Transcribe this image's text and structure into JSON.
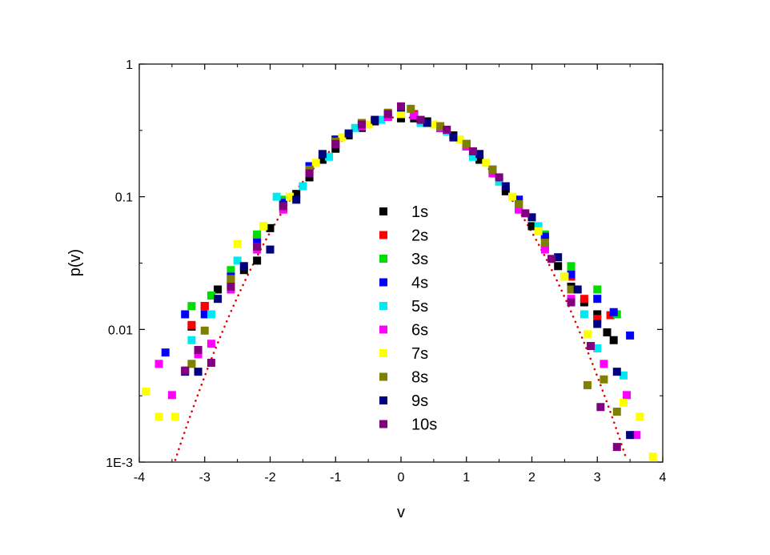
{
  "chart_data": {
    "type": "scatter",
    "xlabel": "v",
    "ylabel": "p(v)",
    "xlim": [
      -4,
      4
    ],
    "ylim": [
      0.001,
      1
    ],
    "yscale": "log",
    "x_ticks": [
      -4,
      -3,
      -2,
      -1,
      0,
      1,
      2,
      3,
      4
    ],
    "x_tick_labels": [
      "-4",
      "-3",
      "-2",
      "-1",
      "0",
      "1",
      "2",
      "3",
      "4"
    ],
    "y_ticks": [
      0.001,
      0.01,
      0.1,
      1
    ],
    "y_tick_labels": [
      "1E-3",
      "0.01",
      "0.1",
      "1"
    ],
    "grid": false,
    "legend_position": "center",
    "fit_curve": {
      "type": "gaussian",
      "style": "dotted",
      "color": "#e00000",
      "mean": 0,
      "std": 1,
      "x_range": [
        -3.45,
        3.45
      ]
    },
    "series": [
      {
        "name": "1s",
        "color": "#000000",
        "points": [
          [
            -3.2,
            0.0105
          ],
          [
            -3.0,
            0.015
          ],
          [
            -2.8,
            0.02
          ],
          [
            -2.6,
            0.024
          ],
          [
            -2.4,
            0.028
          ],
          [
            -2.2,
            0.033
          ],
          [
            -2.0,
            0.058
          ],
          [
            -1.8,
            0.082
          ],
          [
            -1.6,
            0.105
          ],
          [
            -1.4,
            0.14
          ],
          [
            -1.2,
            0.19
          ],
          [
            -1.0,
            0.23
          ],
          [
            -0.8,
            0.29
          ],
          [
            -0.6,
            0.33
          ],
          [
            -0.4,
            0.37
          ],
          [
            -0.2,
            0.4
          ],
          [
            0.0,
            0.39
          ],
          [
            0.2,
            0.39
          ],
          [
            0.4,
            0.37
          ],
          [
            0.6,
            0.33
          ],
          [
            0.8,
            0.29
          ],
          [
            1.0,
            0.24
          ],
          [
            1.2,
            0.19
          ],
          [
            1.4,
            0.15
          ],
          [
            1.6,
            0.11
          ],
          [
            1.8,
            0.082
          ],
          [
            2.0,
            0.06
          ],
          [
            2.2,
            0.042
          ],
          [
            2.4,
            0.03
          ],
          [
            2.6,
            0.021
          ],
          [
            2.8,
            0.016
          ],
          [
            3.0,
            0.013
          ],
          [
            3.15,
            0.0095
          ],
          [
            3.25,
            0.0083
          ]
        ]
      },
      {
        "name": "2s",
        "color": "#ff0000",
        "points": [
          [
            -3.2,
            0.0108
          ],
          [
            -3.0,
            0.015
          ],
          [
            -2.6,
            0.022
          ],
          [
            -2.2,
            0.05
          ],
          [
            -1.8,
            0.09
          ],
          [
            -1.4,
            0.16
          ],
          [
            -1.0,
            0.26
          ],
          [
            -0.6,
            0.34
          ],
          [
            -0.2,
            0.4
          ],
          [
            0.2,
            0.42
          ],
          [
            0.6,
            0.34
          ],
          [
            1.0,
            0.25
          ],
          [
            1.4,
            0.16
          ],
          [
            1.8,
            0.095
          ],
          [
            2.2,
            0.05
          ],
          [
            2.6,
            0.025
          ],
          [
            2.8,
            0.017
          ],
          [
            3.0,
            0.012
          ],
          [
            3.2,
            0.0128
          ]
        ]
      },
      {
        "name": "3s",
        "color": "#00dd00",
        "points": [
          [
            -3.2,
            0.015
          ],
          [
            -2.9,
            0.018
          ],
          [
            -2.6,
            0.028
          ],
          [
            -2.2,
            0.052
          ],
          [
            -1.8,
            0.095
          ],
          [
            -1.4,
            0.16
          ],
          [
            -1.0,
            0.27
          ],
          [
            -0.6,
            0.35
          ],
          [
            -0.2,
            0.42
          ],
          [
            0.2,
            0.41
          ],
          [
            0.6,
            0.33
          ],
          [
            1.0,
            0.25
          ],
          [
            1.4,
            0.16
          ],
          [
            1.8,
            0.09
          ],
          [
            2.2,
            0.052
          ],
          [
            2.6,
            0.03
          ],
          [
            3.0,
            0.02
          ],
          [
            3.3,
            0.013
          ]
        ]
      },
      {
        "name": "4s",
        "color": "#0000ff",
        "points": [
          [
            -3.6,
            0.0067
          ],
          [
            -3.3,
            0.013
          ],
          [
            -3.0,
            0.013
          ],
          [
            -2.6,
            0.025
          ],
          [
            -2.2,
            0.045
          ],
          [
            -1.8,
            0.09
          ],
          [
            -1.4,
            0.17
          ],
          [
            -1.0,
            0.27
          ],
          [
            -0.6,
            0.36
          ],
          [
            -0.2,
            0.42
          ],
          [
            0.2,
            0.41
          ],
          [
            0.6,
            0.33
          ],
          [
            1.0,
            0.24
          ],
          [
            1.4,
            0.16
          ],
          [
            1.8,
            0.095
          ],
          [
            2.2,
            0.05
          ],
          [
            2.6,
            0.026
          ],
          [
            3.0,
            0.017
          ],
          [
            3.25,
            0.0135
          ],
          [
            3.5,
            0.009
          ]
        ]
      },
      {
        "name": "5s",
        "color": "#00e8f0",
        "points": [
          [
            -3.2,
            0.0083
          ],
          [
            -2.9,
            0.013
          ],
          [
            -2.5,
            0.033
          ],
          [
            -2.1,
            0.06
          ],
          [
            -1.9,
            0.1
          ],
          [
            -1.5,
            0.12
          ],
          [
            -1.1,
            0.2
          ],
          [
            -0.7,
            0.33
          ],
          [
            -0.3,
            0.38
          ],
          [
            0.3,
            0.36
          ],
          [
            0.7,
            0.31
          ],
          [
            1.1,
            0.2
          ],
          [
            1.5,
            0.13
          ],
          [
            1.8,
            0.085
          ],
          [
            2.1,
            0.06
          ],
          [
            2.5,
            0.025
          ],
          [
            2.8,
            0.013
          ],
          [
            3.0,
            0.0072
          ],
          [
            3.4,
            0.0045
          ]
        ]
      },
      {
        "name": "6s",
        "color": "#ff00ff",
        "points": [
          [
            -3.7,
            0.0055
          ],
          [
            -3.5,
            0.0032
          ],
          [
            -3.1,
            0.0065
          ],
          [
            -2.9,
            0.0078
          ],
          [
            -2.6,
            0.02
          ],
          [
            -2.2,
            0.04
          ],
          [
            -1.8,
            0.08
          ],
          [
            -1.4,
            0.15
          ],
          [
            -1.0,
            0.25
          ],
          [
            -0.6,
            0.34
          ],
          [
            -0.2,
            0.4
          ],
          [
            0.2,
            0.41
          ],
          [
            0.6,
            0.33
          ],
          [
            1.0,
            0.24
          ],
          [
            1.4,
            0.15
          ],
          [
            1.8,
            0.08
          ],
          [
            2.2,
            0.04
          ],
          [
            2.6,
            0.017
          ],
          [
            3.1,
            0.0055
          ],
          [
            3.45,
            0.0032
          ],
          [
            3.6,
            0.0016
          ]
        ]
      },
      {
        "name": "7s",
        "color": "#ffff00",
        "points": [
          [
            -3.9,
            0.0034
          ],
          [
            -3.7,
            0.0022
          ],
          [
            -3.45,
            0.0022
          ],
          [
            -3.2,
            0.0055
          ],
          [
            -2.5,
            0.044
          ],
          [
            -2.1,
            0.06
          ],
          [
            -1.7,
            0.1
          ],
          [
            -1.3,
            0.18
          ],
          [
            -0.9,
            0.28
          ],
          [
            -0.5,
            0.35
          ],
          [
            0.0,
            0.42
          ],
          [
            0.5,
            0.35
          ],
          [
            0.9,
            0.27
          ],
          [
            1.3,
            0.18
          ],
          [
            1.7,
            0.1
          ],
          [
            2.1,
            0.055
          ],
          [
            2.5,
            0.025
          ],
          [
            2.85,
            0.0092
          ],
          [
            3.4,
            0.0028
          ],
          [
            3.65,
            0.0022
          ],
          [
            3.85,
            0.0011
          ]
        ]
      },
      {
        "name": "8s",
        "color": "#808000",
        "points": [
          [
            -3.2,
            0.0055
          ],
          [
            -3.0,
            0.0098
          ],
          [
            -2.6,
            0.024
          ],
          [
            -2.2,
            0.042
          ],
          [
            -1.8,
            0.085
          ],
          [
            -1.4,
            0.16
          ],
          [
            -1.0,
            0.26
          ],
          [
            -0.6,
            0.36
          ],
          [
            -0.2,
            0.43
          ],
          [
            0.15,
            0.46
          ],
          [
            0.6,
            0.34
          ],
          [
            1.0,
            0.25
          ],
          [
            1.4,
            0.16
          ],
          [
            1.8,
            0.088
          ],
          [
            2.2,
            0.045
          ],
          [
            2.6,
            0.02
          ],
          [
            2.85,
            0.0038
          ],
          [
            3.1,
            0.0042
          ],
          [
            3.3,
            0.0024
          ]
        ]
      },
      {
        "name": "9s",
        "color": "#000080",
        "points": [
          [
            -3.3,
            0.0048
          ],
          [
            -3.1,
            0.0048
          ],
          [
            -2.8,
            0.017
          ],
          [
            -2.4,
            0.03
          ],
          [
            -2.0,
            0.04
          ],
          [
            -1.6,
            0.095
          ],
          [
            -1.2,
            0.21
          ],
          [
            -0.8,
            0.3
          ],
          [
            -0.4,
            0.38
          ],
          [
            0.0,
            0.47
          ],
          [
            0.4,
            0.36
          ],
          [
            0.8,
            0.28
          ],
          [
            1.2,
            0.21
          ],
          [
            1.6,
            0.12
          ],
          [
            2.0,
            0.07
          ],
          [
            2.4,
            0.035
          ],
          [
            2.7,
            0.02
          ],
          [
            3.0,
            0.011
          ],
          [
            3.3,
            0.0048
          ],
          [
            3.5,
            0.0016
          ]
        ]
      },
      {
        "name": "10s",
        "color": "#800080",
        "points": [
          [
            -3.3,
            0.0049
          ],
          [
            -3.1,
            0.007
          ],
          [
            -2.9,
            0.0056
          ],
          [
            -2.6,
            0.021
          ],
          [
            -2.2,
            0.042
          ],
          [
            -1.8,
            0.085
          ],
          [
            -1.4,
            0.15
          ],
          [
            -1.0,
            0.25
          ],
          [
            -0.6,
            0.35
          ],
          [
            -0.2,
            0.42
          ],
          [
            0.0,
            0.48
          ],
          [
            0.3,
            0.38
          ],
          [
            0.7,
            0.32
          ],
          [
            1.1,
            0.22
          ],
          [
            1.5,
            0.14
          ],
          [
            1.9,
            0.075
          ],
          [
            2.3,
            0.034
          ],
          [
            2.6,
            0.016
          ],
          [
            2.9,
            0.0075
          ],
          [
            3.05,
            0.0026
          ],
          [
            3.3,
            0.0013
          ]
        ]
      }
    ]
  }
}
